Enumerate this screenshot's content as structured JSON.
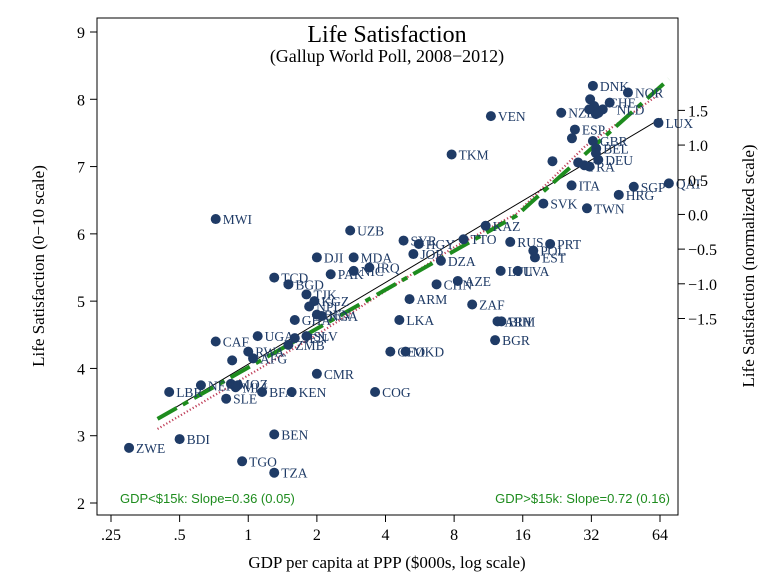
{
  "chart_data": {
    "type": "scatter",
    "title": "Life Satisfaction",
    "subtitle": "(Gallup World Poll, 2008−2012)",
    "xlabel": "GDP per capita at PPP ($000s, log scale)",
    "ylabel": "Life Satisfaction (0−10 scale)",
    "y2label": "Life Satisfaction (normalized scale)",
    "x_scale": "log",
    "xlim": [
      0.25,
      80
    ],
    "ylim": [
      2,
      9
    ],
    "x_ticks": [
      0.25,
      0.5,
      1,
      2,
      4,
      8,
      16,
      32,
      64
    ],
    "x_tick_labels": [
      ".25",
      ".5",
      "1",
      "2",
      "4",
      "8",
      "16",
      "32",
      "64"
    ],
    "y_ticks": [
      2,
      3,
      4,
      5,
      6,
      7,
      8,
      9
    ],
    "y2_ticks": [
      -1.5,
      -1.0,
      -0.5,
      0.0,
      0.5,
      1.0,
      1.5
    ],
    "y2_tick_labels": [
      "−1.5",
      "−1.0",
      "−0.5",
      "0.0",
      "0.5",
      "1.0",
      "1.5"
    ],
    "y2_map": {
      "a": -6.1,
      "b": 0.97
    },
    "grid": false,
    "point_color": "#1f3b66",
    "line_colors": {
      "fit": "#000000",
      "piecewise": "#1e8c1e",
      "smooth": "#c0405a"
    },
    "notes": [
      "GDP<$15k: Slope=0.36 (0.05)",
      "GDP>$15k: Slope=0.72 (0.16)"
    ],
    "fit_line": {
      "x": [
        0.4,
        65
      ],
      "y": [
        3.26,
        7.72
      ]
    },
    "piecewise_line": {
      "x": [
        0.4,
        15,
        70
      ],
      "y": [
        3.25,
        6.27,
        8.3
      ]
    },
    "smooth_line": {
      "x": [
        0.4,
        2,
        8,
        15,
        30,
        65
      ],
      "y": [
        3.1,
        4.5,
        5.8,
        6.3,
        7.3,
        8.1
      ]
    },
    "points": [
      {
        "code": "DNK",
        "x": 32.5,
        "y": 8.2
      },
      {
        "code": "NOR",
        "x": 46.3,
        "y": 8.1
      },
      {
        "code": "CHE",
        "x": 38.5,
        "y": 7.95
      },
      {
        "code": "NLD",
        "x": 35.9,
        "y": 7.85
      },
      {
        "code": "SWE",
        "x": 31.6,
        "y": 8.0
      },
      {
        "code": "AUS",
        "x": 32.9,
        "y": 7.9
      },
      {
        "code": "CAN",
        "x": 33.5,
        "y": 7.78
      },
      {
        "code": "FIN",
        "x": 31.3,
        "y": 7.85
      },
      {
        "code": "AUT",
        "x": 34.4,
        "y": 7.8
      },
      {
        "code": "NZL",
        "x": 23.6,
        "y": 7.8
      },
      {
        "code": "VEN",
        "x": 11.6,
        "y": 7.75
      },
      {
        "code": "LUX",
        "x": 63.0,
        "y": 7.65
      },
      {
        "code": "ESP",
        "x": 27.1,
        "y": 7.55
      },
      {
        "code": "ISR",
        "x": 26.3,
        "y": 7.42
      },
      {
        "code": "GBR",
        "x": 32.5,
        "y": 7.38
      },
      {
        "code": "BEL",
        "x": 33.6,
        "y": 7.27
      },
      {
        "code": "IRL",
        "x": 33.5,
        "y": 7.2
      },
      {
        "code": "TKM",
        "x": 7.8,
        "y": 7.18
      },
      {
        "code": "DEU",
        "x": 34.3,
        "y": 7.1
      },
      {
        "code": "FRA",
        "x": 31.4,
        "y": 7.0
      },
      {
        "code": "JPN",
        "x": 29.8,
        "y": 7.02
      },
      {
        "code": "SAU",
        "x": 21.6,
        "y": 7.08
      },
      {
        "code": "KWT",
        "x": 28.0,
        "y": 7.06
      },
      {
        "code": "ITA",
        "x": 26.2,
        "y": 6.72
      },
      {
        "code": "QAT",
        "x": 70.0,
        "y": 6.75
      },
      {
        "code": "SGP",
        "x": 49.1,
        "y": 6.7
      },
      {
        "code": "HRG",
        "x": 42.2,
        "y": 6.58
      },
      {
        "code": "SVK",
        "x": 19.7,
        "y": 6.45
      },
      {
        "code": "TWN",
        "x": 30.6,
        "y": 6.38
      },
      {
        "code": "MWI",
        "x": 0.72,
        "y": 6.22
      },
      {
        "code": "KAZ",
        "x": 11.0,
        "y": 6.12
      },
      {
        "code": "UZB",
        "x": 2.8,
        "y": 6.05
      },
      {
        "code": "SYR",
        "x": 4.8,
        "y": 5.9
      },
      {
        "code": "TTO",
        "x": 8.8,
        "y": 5.92
      },
      {
        "code": "PRT",
        "x": 21.1,
        "y": 5.85
      },
      {
        "code": "RUS",
        "x": 14.1,
        "y": 5.88
      },
      {
        "code": "HGY",
        "x": 5.6,
        "y": 5.85
      },
      {
        "code": "POL",
        "x": 17.8,
        "y": 5.75
      },
      {
        "code": "JOR",
        "x": 5.3,
        "y": 5.7
      },
      {
        "code": "DJI",
        "x": 2.0,
        "y": 5.65
      },
      {
        "code": "MDA",
        "x": 2.9,
        "y": 5.65
      },
      {
        "code": "EST",
        "x": 18.1,
        "y": 5.65
      },
      {
        "code": "DZA",
        "x": 7.0,
        "y": 5.6
      },
      {
        "code": "IRQ",
        "x": 3.4,
        "y": 5.5
      },
      {
        "code": "PAK",
        "x": 2.3,
        "y": 5.4
      },
      {
        "code": "NIC",
        "x": 2.9,
        "y": 5.45
      },
      {
        "code": "LVA",
        "x": 15.2,
        "y": 5.45
      },
      {
        "code": "LTU",
        "x": 12.8,
        "y": 5.45
      },
      {
        "code": "TCD",
        "x": 1.3,
        "y": 5.35
      },
      {
        "code": "CHN",
        "x": 6.7,
        "y": 5.25
      },
      {
        "code": "AZE",
        "x": 8.3,
        "y": 5.3
      },
      {
        "code": "BGD",
        "x": 1.5,
        "y": 5.25
      },
      {
        "code": "TJK",
        "x": 1.8,
        "y": 5.1
      },
      {
        "code": "ARM",
        "x": 5.1,
        "y": 5.03
      },
      {
        "code": "KGZ",
        "x": 1.95,
        "y": 5.0
      },
      {
        "code": "ZAF",
        "x": 9.6,
        "y": 4.95
      },
      {
        "code": "NPL",
        "x": 1.85,
        "y": 4.92
      },
      {
        "code": "BEN",
        "x": 2.0,
        "y": 4.8
      },
      {
        "code": "NGA",
        "x": 2.1,
        "y": 4.78
      },
      {
        "code": "GHA",
        "x": 1.6,
        "y": 4.72
      },
      {
        "code": "LKA",
        "x": 4.6,
        "y": 4.72
      },
      {
        "code": "ARM2",
        "x": 12.4,
        "y": 4.7
      },
      {
        "code": "BIH",
        "x": 12.9,
        "y": 4.7
      },
      {
        "code": "BGR",
        "x": 12.1,
        "y": 4.42
      },
      {
        "code": "CAF",
        "x": 0.72,
        "y": 4.4
      },
      {
        "code": "UGA",
        "x": 1.1,
        "y": 4.48
      },
      {
        "code": "SEN",
        "x": 1.6,
        "y": 4.45
      },
      {
        "code": "SLV",
        "x": 1.8,
        "y": 4.48
      },
      {
        "code": "ZMB",
        "x": 1.5,
        "y": 4.35
      },
      {
        "code": "RWA",
        "x": 1.0,
        "y": 4.25
      },
      {
        "code": "AFG",
        "x": 1.05,
        "y": 4.15
      },
      {
        "code": "ETH",
        "x": 0.85,
        "y": 4.12
      },
      {
        "code": "GEO",
        "x": 4.2,
        "y": 4.25
      },
      {
        "code": "MKD",
        "x": 4.9,
        "y": 4.25
      },
      {
        "code": "CMR",
        "x": 2.0,
        "y": 3.92
      },
      {
        "code": "MOZ",
        "x": 0.84,
        "y": 3.77
      },
      {
        "code": "NER",
        "x": 0.62,
        "y": 3.75
      },
      {
        "code": "MLI",
        "x": 0.88,
        "y": 3.72
      },
      {
        "code": "TGO2",
        "x": 0.9,
        "y": 3.75
      },
      {
        "code": "LBR",
        "x": 0.45,
        "y": 3.65
      },
      {
        "code": "BFA",
        "x": 1.15,
        "y": 3.65
      },
      {
        "code": "KEN",
        "x": 1.55,
        "y": 3.65
      },
      {
        "code": "SLE",
        "x": 0.8,
        "y": 3.55
      },
      {
        "code": "COG",
        "x": 3.6,
        "y": 3.65
      },
      {
        "code": "BEN2",
        "x": 1.3,
        "y": 3.02
      },
      {
        "code": "BDI",
        "x": 0.5,
        "y": 2.95
      },
      {
        "code": "ZWE",
        "x": 0.3,
        "y": 2.82
      },
      {
        "code": "TGO",
        "x": 0.94,
        "y": 2.62
      },
      {
        "code": "TZA",
        "x": 1.3,
        "y": 2.45
      }
    ],
    "labels": [
      {
        "text": "DNK",
        "x": 32.5,
        "y": 8.2
      },
      {
        "text": "NOR",
        "x": 46.3,
        "y": 8.1
      },
      {
        "text": "CHE",
        "x": 35.6,
        "y": 7.95
      },
      {
        "text": "NLD",
        "x": 38.5,
        "y": 7.85
      },
      {
        "text": "NZL",
        "x": 23.6,
        "y": 7.8
      },
      {
        "text": "VEN",
        "x": 11.6,
        "y": 7.75
      },
      {
        "text": "LUX",
        "x": 63.0,
        "y": 7.65
      },
      {
        "text": "ESP",
        "x": 27.1,
        "y": 7.55
      },
      {
        "text": "GBR",
        "x": 32.5,
        "y": 7.38
      },
      {
        "text": "BEL",
        "x": 33.6,
        "y": 7.27
      },
      {
        "text": "TKM",
        "x": 7.8,
        "y": 7.18
      },
      {
        "text": "DEU",
        "x": 34.3,
        "y": 7.1
      },
      {
        "text": "FRA",
        "x": 29.0,
        "y": 7.0
      },
      {
        "text": "ITA",
        "x": 26.2,
        "y": 6.72
      },
      {
        "text": "QAT",
        "x": 70.0,
        "y": 6.75
      },
      {
        "text": "SGP",
        "x": 49.1,
        "y": 6.7
      },
      {
        "text": "HRG",
        "x": 42.2,
        "y": 6.58
      },
      {
        "text": "SVK",
        "x": 19.7,
        "y": 6.45
      },
      {
        "text": "TWN",
        "x": 30.6,
        "y": 6.38
      },
      {
        "text": "MWI",
        "x": 0.72,
        "y": 6.22
      },
      {
        "text": "KAZ",
        "x": 11.0,
        "y": 6.12
      },
      {
        "text": "UZB",
        "x": 2.8,
        "y": 6.05
      },
      {
        "text": "SYR",
        "x": 4.8,
        "y": 5.9
      },
      {
        "text": "TTO",
        "x": 8.8,
        "y": 5.92
      },
      {
        "text": "PRT",
        "x": 21.1,
        "y": 5.85
      },
      {
        "text": "RUS",
        "x": 14.1,
        "y": 5.88
      },
      {
        "text": "HGY",
        "x": 5.6,
        "y": 5.85
      },
      {
        "text": "POL",
        "x": 17.8,
        "y": 5.75
      },
      {
        "text": "JOR",
        "x": 5.3,
        "y": 5.7
      },
      {
        "text": "DJI",
        "x": 2.0,
        "y": 5.65
      },
      {
        "text": "MDA",
        "x": 2.9,
        "y": 5.65
      },
      {
        "text": "EST",
        "x": 18.1,
        "y": 5.65
      },
      {
        "text": "DZA",
        "x": 7.0,
        "y": 5.6
      },
      {
        "text": "IRQ",
        "x": 3.4,
        "y": 5.5
      },
      {
        "text": "PAK",
        "x": 2.3,
        "y": 5.4
      },
      {
        "text": "NIC",
        "x": 2.9,
        "y": 5.45
      },
      {
        "text": "LVA",
        "x": 15.2,
        "y": 5.45
      },
      {
        "text": "LTU",
        "x": 12.8,
        "y": 5.45
      },
      {
        "text": "TCD",
        "x": 1.3,
        "y": 5.35
      },
      {
        "text": "CHN",
        "x": 6.7,
        "y": 5.25
      },
      {
        "text": "AZE",
        "x": 8.3,
        "y": 5.3
      },
      {
        "text": "BGD",
        "x": 1.5,
        "y": 5.25
      },
      {
        "text": "TJK",
        "x": 1.8,
        "y": 5.1
      },
      {
        "text": "ARM",
        "x": 5.1,
        "y": 5.03
      },
      {
        "text": "KGZ",
        "x": 1.95,
        "y": 5.0
      },
      {
        "text": "ZAF",
        "x": 9.6,
        "y": 4.95
      },
      {
        "text": "NPL",
        "x": 1.85,
        "y": 4.92
      },
      {
        "text": "BEN",
        "x": 2.0,
        "y": 4.8
      },
      {
        "text": "NGA",
        "x": 2.1,
        "y": 4.78
      },
      {
        "text": "GHA",
        "x": 1.6,
        "y": 4.72
      },
      {
        "text": "LKA",
        "x": 4.6,
        "y": 4.72
      },
      {
        "text": "ARM",
        "x": 12.4,
        "y": 4.7
      },
      {
        "text": "BIH",
        "x": 12.9,
        "y": 4.7
      },
      {
        "text": "BGR",
        "x": 12.1,
        "y": 4.42
      },
      {
        "text": "CAF",
        "x": 0.72,
        "y": 4.4
      },
      {
        "text": "UGA",
        "x": 1.1,
        "y": 4.48
      },
      {
        "text": "SEN",
        "x": 1.6,
        "y": 4.45
      },
      {
        "text": "SLV",
        "x": 1.8,
        "y": 4.48
      },
      {
        "text": "ZMB",
        "x": 1.5,
        "y": 4.35
      },
      {
        "text": "RWA",
        "x": 1.0,
        "y": 4.25
      },
      {
        "text": "AFG",
        "x": 1.05,
        "y": 4.15
      },
      {
        "text": "GEO",
        "x": 4.2,
        "y": 4.25
      },
      {
        "text": "MKD",
        "x": 4.9,
        "y": 4.25
      },
      {
        "text": "CMR",
        "x": 2.0,
        "y": 3.92
      },
      {
        "text": "MOZ",
        "x": 0.84,
        "y": 3.77
      },
      {
        "text": "NER",
        "x": 0.62,
        "y": 3.75
      },
      {
        "text": "MLI",
        "x": 0.88,
        "y": 3.72
      },
      {
        "text": "LBR",
        "x": 0.45,
        "y": 3.65
      },
      {
        "text": "BFA",
        "x": 1.15,
        "y": 3.65
      },
      {
        "text": "KEN",
        "x": 1.55,
        "y": 3.65
      },
      {
        "text": "SLE",
        "x": 0.8,
        "y": 3.55
      },
      {
        "text": "COG",
        "x": 3.6,
        "y": 3.65
      },
      {
        "text": "BEN",
        "x": 1.3,
        "y": 3.02
      },
      {
        "text": "BDI",
        "x": 0.5,
        "y": 2.95
      },
      {
        "text": "ZWE",
        "x": 0.3,
        "y": 2.82
      },
      {
        "text": "TGO",
        "x": 0.94,
        "y": 2.62
      },
      {
        "text": "TZA",
        "x": 1.3,
        "y": 2.45
      }
    ]
  }
}
